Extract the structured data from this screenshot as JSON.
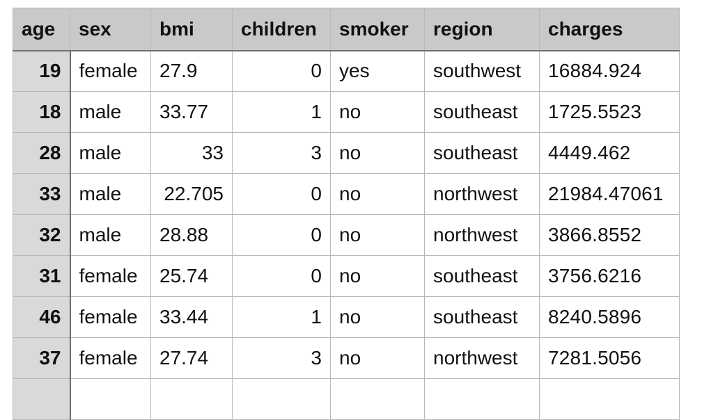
{
  "table": {
    "headers": [
      "age",
      "sex",
      "bmi",
      "children",
      "smoker",
      "region",
      "charges"
    ],
    "rows": [
      [
        "19",
        "female",
        "27.9",
        "0",
        "yes",
        "southwest",
        "16884.924"
      ],
      [
        "18",
        "male",
        "33.77",
        "1",
        "no",
        "southeast",
        "1725.5523"
      ],
      [
        "28",
        "male",
        "33",
        "3",
        "no",
        "southeast",
        "4449.462"
      ],
      [
        "33",
        "male",
        "22.705",
        "0",
        "no",
        "northwest",
        "21984.47061"
      ],
      [
        "32",
        "male",
        "28.88",
        "0",
        "no",
        "northwest",
        "3866.8552"
      ],
      [
        "31",
        "female",
        "25.74",
        "0",
        "no",
        "southeast",
        "3756.6216"
      ],
      [
        "46",
        "female",
        "33.44",
        "1",
        "no",
        "southeast",
        "8240.5896"
      ],
      [
        "37",
        "female",
        "27.74",
        "3",
        "no",
        "northwest",
        "7281.5056"
      ]
    ]
  },
  "colors": {
    "header_bg": "#c9c9c9",
    "age_col_bg": "#d9d9d9",
    "grid_line": "#b9b9b9"
  }
}
